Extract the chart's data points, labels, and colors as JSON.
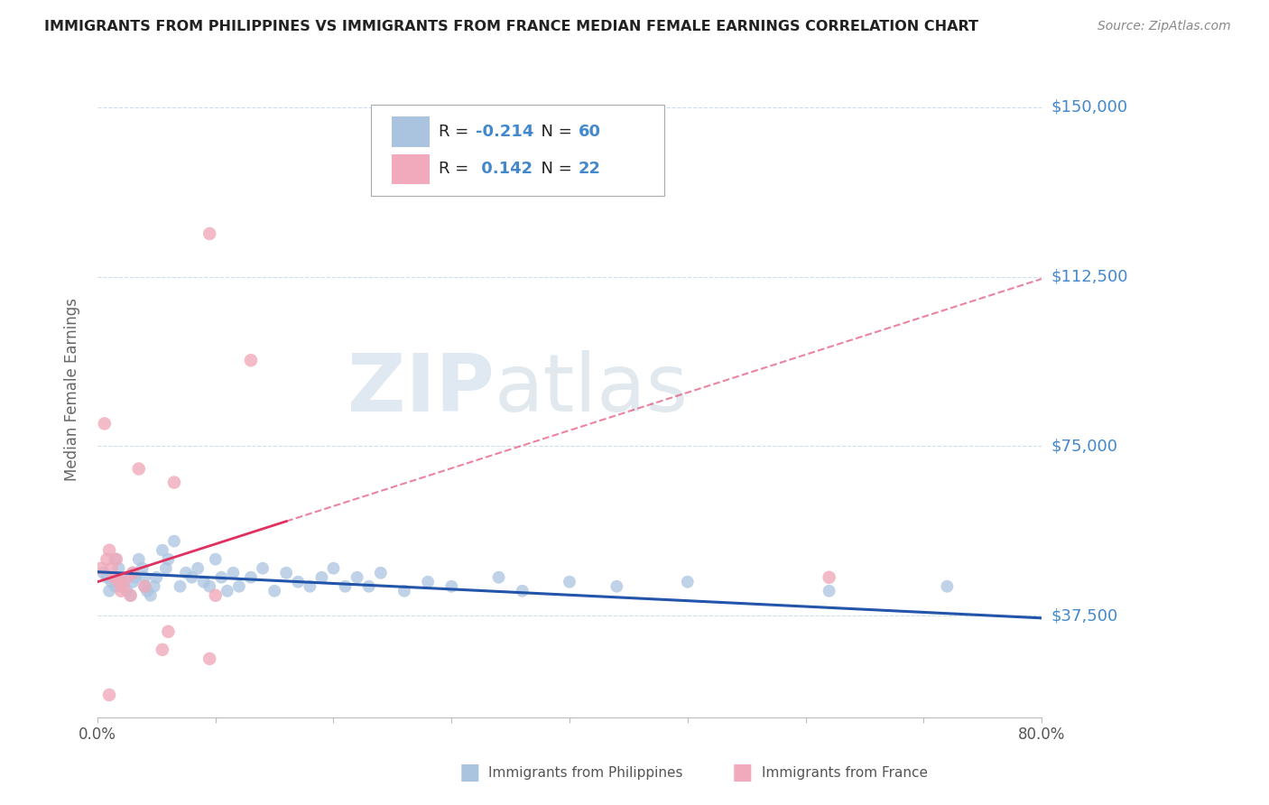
{
  "title": "IMMIGRANTS FROM PHILIPPINES VS IMMIGRANTS FROM FRANCE MEDIAN FEMALE EARNINGS CORRELATION CHART",
  "source": "Source: ZipAtlas.com",
  "ylabel": "Median Female Earnings",
  "xlim": [
    0.0,
    0.8
  ],
  "ylim": [
    15000,
    160000
  ],
  "yticks": [
    37500,
    75000,
    112500,
    150000
  ],
  "ytick_labels": [
    "$37,500",
    "$75,000",
    "$112,500",
    "$150,000"
  ],
  "xtick_vals": [
    0.0,
    0.1,
    0.2,
    0.3,
    0.4,
    0.5,
    0.6,
    0.7,
    0.8
  ],
  "philippines_color": "#aac4e0",
  "france_color": "#f0aabb",
  "philippines_line_color": "#2255aa",
  "france_line_color": "#e03060",
  "R_philippines": -0.214,
  "N_philippines": 60,
  "R_france": 0.142,
  "N_france": 22,
  "background_color": "#ffffff",
  "grid_color": "#c8daea",
  "watermark_zip": "ZIP",
  "watermark_atlas": "atlas",
  "title_color": "#222222",
  "axis_label_color": "#666666",
  "right_label_color": "#4488cc",
  "philippines_x": [
    0.005,
    0.008,
    0.01,
    0.012,
    0.015,
    0.015,
    0.018,
    0.02,
    0.02,
    0.022,
    0.025,
    0.028,
    0.03,
    0.03,
    0.032,
    0.035,
    0.038,
    0.04,
    0.04,
    0.042,
    0.045,
    0.048,
    0.05,
    0.055,
    0.058,
    0.06,
    0.065,
    0.07,
    0.075,
    0.08,
    0.085,
    0.09,
    0.095,
    0.1,
    0.105,
    0.11,
    0.115,
    0.12,
    0.13,
    0.14,
    0.15,
    0.16,
    0.17,
    0.18,
    0.19,
    0.2,
    0.21,
    0.22,
    0.23,
    0.24,
    0.26,
    0.28,
    0.3,
    0.34,
    0.36,
    0.4,
    0.44,
    0.5,
    0.62,
    0.72
  ],
  "philippines_y": [
    47000,
    46000,
    43000,
    45000,
    44000,
    50000,
    48000,
    44000,
    46000,
    45000,
    43000,
    42000,
    45000,
    47000,
    46000,
    50000,
    48000,
    44000,
    46000,
    43000,
    42000,
    44000,
    46000,
    52000,
    48000,
    50000,
    54000,
    44000,
    47000,
    46000,
    48000,
    45000,
    44000,
    50000,
    46000,
    43000,
    47000,
    44000,
    46000,
    48000,
    43000,
    47000,
    45000,
    44000,
    46000,
    48000,
    44000,
    46000,
    44000,
    47000,
    43000,
    45000,
    44000,
    46000,
    43000,
    45000,
    44000,
    45000,
    43000,
    44000
  ],
  "france_x": [
    0.003,
    0.006,
    0.008,
    0.01,
    0.012,
    0.014,
    0.016,
    0.018,
    0.02,
    0.022,
    0.025,
    0.028,
    0.03,
    0.035,
    0.04,
    0.055,
    0.06,
    0.065,
    0.095,
    0.1,
    0.13,
    0.62
  ],
  "france_y": [
    48000,
    80000,
    50000,
    52000,
    48000,
    46000,
    50000,
    45000,
    43000,
    44000,
    46000,
    42000,
    47000,
    70000,
    44000,
    30000,
    34000,
    67000,
    28000,
    42000,
    94000,
    46000
  ],
  "france_outlier_x": [
    0.095
  ],
  "france_outlier_y": [
    122000
  ],
  "france_low_x": [
    0.01
  ],
  "france_low_y": [
    20000
  ],
  "philippines_marker_size": 100,
  "france_marker_size": 110
}
